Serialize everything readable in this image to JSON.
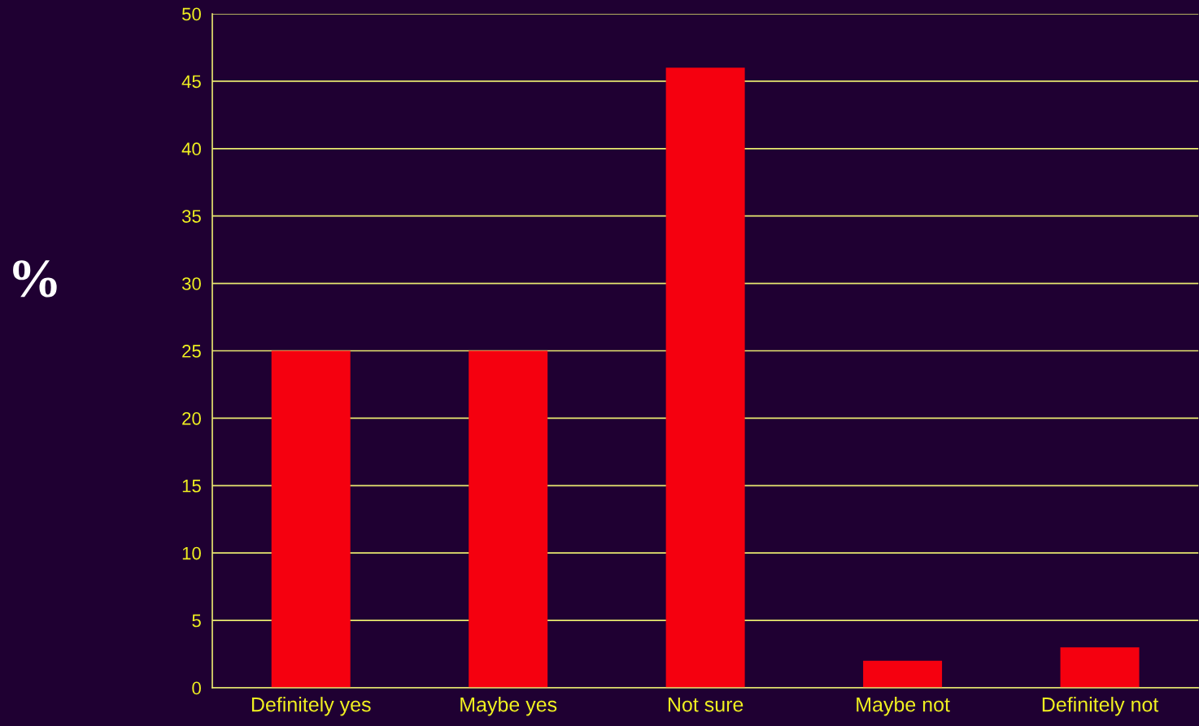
{
  "chart_data": {
    "type": "bar",
    "ylabel": "%",
    "categories": [
      "Definitely yes",
      "Maybe yes",
      "Not sure",
      "Maybe not",
      "Definitely not"
    ],
    "values": [
      25,
      25,
      46,
      2,
      3
    ],
    "color": "#f5000f",
    "ylim": [
      0,
      50
    ],
    "yticks": [
      0,
      5,
      10,
      15,
      20,
      25,
      30,
      35,
      40,
      45,
      50
    ],
    "grid": "y"
  }
}
